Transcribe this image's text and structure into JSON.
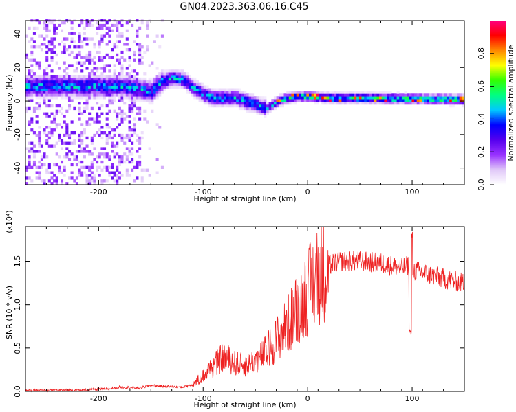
{
  "figure": {
    "title": "GN04.2023.363.06.16.C45"
  },
  "chart_data": [
    {
      "type": "heatmap",
      "xlabel": "Height of straight line (km)",
      "ylabel": "Frequency (Hz)",
      "xlim": [
        -270,
        150
      ],
      "ylim": [
        -50,
        48
      ],
      "xticks": [
        -200,
        -100,
        0,
        100
      ],
      "yticks": [
        -40,
        -20,
        0,
        20,
        40
      ],
      "xtick_labels": [
        "-200",
        "-100",
        "0",
        "100"
      ],
      "ytick_labels": [
        "-40",
        "-20",
        "0",
        "20",
        "40"
      ],
      "colorbar": {
        "label": "Normalized spectral amplitude",
        "range": [
          0,
          1
        ],
        "ticks": [
          0.0,
          0.2,
          0.4,
          0.6,
          0.8
        ],
        "tick_labels": [
          "0.0",
          "0.2",
          "0.4",
          "0.6",
          "0.8"
        ],
        "colormap": [
          "#ffffff",
          "#e0c8f8",
          "#9933ff",
          "#5500ee",
          "#0000ff",
          "#00c8ff",
          "#00ff80",
          "#33ff00",
          "#ffff00",
          "#ff8800",
          "#ff0000",
          "#ff0080"
        ]
      },
      "ridge": {
        "x": [
          -200,
          -180,
          -160,
          -150,
          -140,
          -130,
          -120,
          -110,
          -100,
          -90,
          -80,
          -70,
          -60,
          -50,
          -40,
          -30,
          -20,
          -10,
          0,
          20,
          50,
          100,
          150
        ],
        "y": [
          8,
          8,
          6,
          5,
          11,
          13,
          12,
          7,
          3,
          1,
          1,
          1,
          -1,
          -3,
          -5,
          -1,
          1,
          2,
          2,
          1,
          1,
          0.5,
          0
        ]
      }
    },
    {
      "type": "line",
      "xlabel": "Height of straight line (km)",
      "ylabel": "SNR (10 * v/v)",
      "y_multiplier": "(x10⁴)",
      "xlim": [
        -270,
        150
      ],
      "ylim": [
        0,
        1.9
      ],
      "xticks": [
        -200,
        -100,
        0,
        100
      ],
      "yticks": [
        0.0,
        0.5,
        1.0,
        1.5
      ],
      "xtick_labels": [
        "-200",
        "-100",
        "0",
        "100"
      ],
      "ytick_labels": [
        "0.0",
        "0.5",
        "1.0",
        "1.5"
      ],
      "color": "#ee2222",
      "envelope": {
        "x": [
          -270,
          -220,
          -190,
          -180,
          -160,
          -150,
          -140,
          -120,
          -110,
          -100,
          -90,
          -80,
          -70,
          -60,
          -50,
          -40,
          -30,
          -20,
          -10,
          0,
          10,
          20,
          30,
          50,
          70,
          90,
          96,
          100,
          110,
          130,
          150
        ],
        "y": [
          0.01,
          0.015,
          0.03,
          0.05,
          0.04,
          0.07,
          0.06,
          0.05,
          0.08,
          0.18,
          0.3,
          0.4,
          0.33,
          0.3,
          0.35,
          0.45,
          0.6,
          0.75,
          0.95,
          1.15,
          1.35,
          1.45,
          1.5,
          1.5,
          1.48,
          1.42,
          1.45,
          1.4,
          1.37,
          1.3,
          1.25
        ]
      }
    }
  ]
}
